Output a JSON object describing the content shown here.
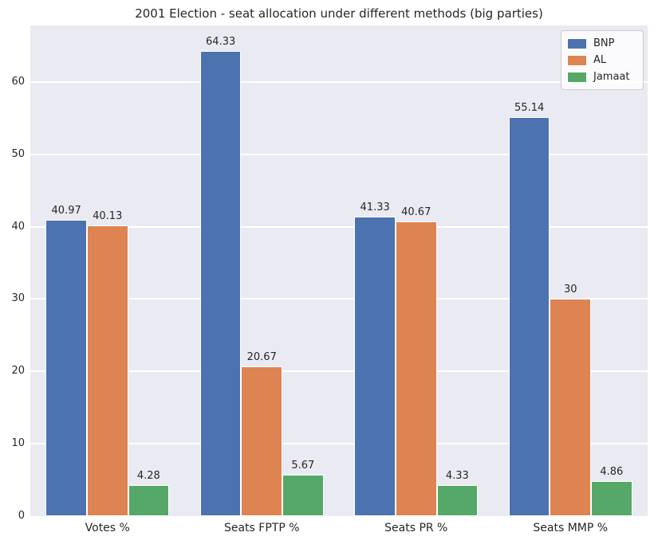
{
  "chart_data": {
    "type": "bar",
    "title": "2001 Election - seat allocation under different methods (big parties)",
    "categories": [
      "Votes %",
      "Seats FPTP %",
      "Seats PR %",
      "Seats MMP %"
    ],
    "series": [
      {
        "name": "BNP",
        "color": "#4C72B0",
        "values": [
          40.97,
          64.33,
          41.33,
          55.14
        ],
        "labels": [
          "40.97",
          "64.33",
          "41.33",
          "55.14"
        ]
      },
      {
        "name": "AL",
        "color": "#DD8452",
        "values": [
          40.13,
          20.67,
          40.67,
          30
        ],
        "labels": [
          "40.13",
          "20.67",
          "40.67",
          "30"
        ]
      },
      {
        "name": "Jamaat",
        "color": "#55A868",
        "values": [
          4.28,
          5.67,
          4.33,
          4.86
        ],
        "labels": [
          "4.28",
          "5.67",
          "4.33",
          "4.86"
        ]
      }
    ],
    "xlabel": "",
    "ylabel": "",
    "ylim": [
      0,
      67.8
    ],
    "yticks": [
      "0",
      "10",
      "20",
      "30",
      "40",
      "50",
      "60"
    ],
    "grid": "horizontal",
    "grid_color": "#FFFFFF",
    "plot_background": "#EAEAF2",
    "text_color": "#262626",
    "legend_position": "upper right"
  }
}
